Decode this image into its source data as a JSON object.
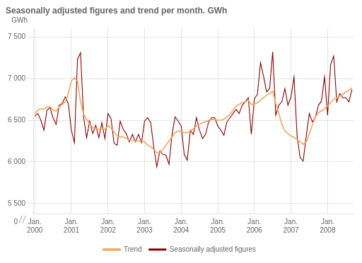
{
  "chart_data": {
    "type": "line",
    "title": "Seasonally adjusted figures and trend per month. GWh",
    "ylabel": "GWh",
    "annotations": [
      "0"
    ],
    "categories": [
      "Jan.\n2000",
      null,
      null,
      null,
      null,
      null,
      null,
      null,
      null,
      null,
      null,
      null,
      "Jan.\n2001",
      null,
      null,
      null,
      null,
      null,
      null,
      null,
      null,
      null,
      null,
      null,
      "Jan.\n2002",
      null,
      null,
      null,
      null,
      null,
      null,
      null,
      null,
      null,
      null,
      null,
      "Jan.\n2003",
      null,
      null,
      null,
      null,
      null,
      null,
      null,
      null,
      null,
      null,
      null,
      "Jan.\n2004",
      null,
      null,
      null,
      null,
      null,
      null,
      null,
      null,
      null,
      null,
      null,
      "Jan.\n2005",
      null,
      null,
      null,
      null,
      null,
      null,
      null,
      null,
      null,
      null,
      null,
      "Jan.\n2006",
      null,
      null,
      null,
      null,
      null,
      null,
      null,
      null,
      null,
      null,
      null,
      "Jan.\n2007",
      null,
      null,
      null,
      null,
      null,
      null,
      null,
      null,
      null,
      null,
      null,
      "Jan.\n2008",
      null,
      null,
      null,
      null,
      null,
      null,
      null,
      null
    ],
    "series": [
      {
        "name": "Trend",
        "color": "#f4a460",
        "values": [
          6580,
          6620,
          6640,
          6630,
          6660,
          6660,
          6620,
          6610,
          6660,
          6690,
          6720,
          6820,
          6970,
          7010,
          6970,
          6720,
          6570,
          6510,
          6460,
          6410,
          6400,
          6390,
          6400,
          6390,
          6440,
          6400,
          6360,
          6310,
          6300,
          6300,
          6280,
          6260,
          6260,
          6250,
          6250,
          6250,
          6240,
          6200,
          6180,
          6150,
          6110,
          6110,
          6150,
          6200,
          6250,
          6300,
          6350,
          6370,
          6370,
          6350,
          6350,
          6370,
          6400,
          6430,
          6450,
          6470,
          6480,
          6500,
          6510,
          6510,
          6500,
          6500,
          6510,
          6540,
          6570,
          6620,
          6670,
          6690,
          6710,
          6720,
          6740,
          6690,
          6690,
          6710,
          6740,
          6770,
          6800,
          6820,
          6850,
          6700,
          6590,
          6450,
          6370,
          6340,
          6310,
          6290,
          6270,
          6240,
          6210,
          6240,
          6340,
          6440,
          6540,
          6590,
          6610,
          6640,
          6670,
          6710,
          6750,
          6770,
          6790,
          6810,
          6840,
          6860,
          6890
        ]
      },
      {
        "name": "Seasonally adjusted figures",
        "color": "#8b0000",
        "values": [
          6550,
          6580,
          6500,
          6380,
          6620,
          6650,
          6530,
          6450,
          6680,
          6700,
          6780,
          6700,
          6380,
          6230,
          7230,
          7310,
          6540,
          6290,
          6490,
          6340,
          6440,
          6290,
          6470,
          6280,
          6580,
          6520,
          6220,
          6200,
          6490,
          6390,
          6340,
          6240,
          6330,
          6240,
          6330,
          6230,
          6490,
          6530,
          6470,
          6180,
          5940,
          6130,
          6090,
          6080,
          5970,
          6330,
          6540,
          6490,
          6430,
          6090,
          6020,
          6380,
          6330,
          6530,
          6380,
          6280,
          6330,
          6480,
          6530,
          6530,
          6430,
          6380,
          6320,
          6480,
          6530,
          6580,
          6630,
          6580,
          6680,
          6720,
          6770,
          6330,
          6760,
          6810,
          7190,
          7030,
          6840,
          6880,
          7320,
          6560,
          6680,
          6720,
          6880,
          6680,
          6780,
          7020,
          6310,
          6050,
          6010,
          6310,
          6580,
          6480,
          6530,
          6680,
          6730,
          7020,
          6560,
          7170,
          7270,
          6720,
          6820,
          6770,
          6770,
          6720,
          6870
        ]
      }
    ],
    "ylim": [
      5380,
      7600
    ],
    "yticks": [
      {
        "value": 5500,
        "label": "5 500"
      },
      {
        "value": 6000,
        "label": "6 000"
      },
      {
        "value": 6500,
        "label": "6 500"
      },
      {
        "value": 7000,
        "label": "7 000"
      },
      {
        "value": 7500,
        "label": "7 500"
      }
    ],
    "grid": true,
    "legend": "bottom"
  }
}
